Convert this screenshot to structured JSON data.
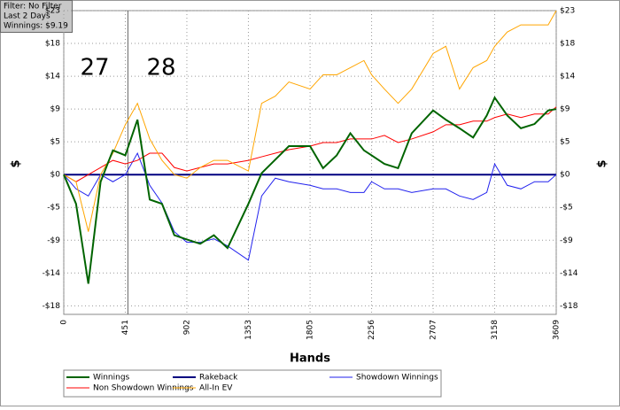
{
  "chart_data": {
    "type": "line",
    "info": [
      "Filter: No Filter",
      "Last  2 Days",
      "Winnings: $9.19"
    ],
    "xlabel": "Hands",
    "ylabel": "$",
    "annotations": [
      "27",
      "28"
    ],
    "divider": 470,
    "x": [
      0,
      90,
      180,
      270,
      360,
      451,
      540,
      630,
      720,
      810,
      902,
      1000,
      1100,
      1200,
      1353,
      1450,
      1550,
      1650,
      1805,
      1900,
      2000,
      2100,
      2200,
      2256,
      2350,
      2450,
      2550,
      2707,
      2800,
      2900,
      3000,
      3100,
      3158,
      3250,
      3350,
      3450,
      3550,
      3609
    ],
    "xlim": [
      0,
      3609
    ],
    "xticks": [
      0,
      451,
      902,
      1353,
      {
        "value": 1805,
        "label": "1805"
      },
      2256,
      2707,
      3158,
      3609
    ],
    "ylim": [
      -19.6,
      23
    ],
    "yticks": [
      {
        "value": -18.4,
        "label": "-$18"
      },
      {
        "value": -13.8,
        "label": "-$14"
      },
      {
        "value": -9.2,
        "label": "-$9"
      },
      {
        "value": -4.6,
        "label": "-$5"
      },
      {
        "value": 0,
        "label": "$0"
      },
      {
        "value": 4.6,
        "label": "$5"
      },
      {
        "value": 9.2,
        "label": "$9"
      },
      {
        "value": 13.8,
        "label": "$14"
      },
      {
        "value": 18.4,
        "label": "$18"
      },
      {
        "value": 23,
        "label": "$23"
      }
    ],
    "grid": true,
    "series": [
      {
        "name": "Winnings",
        "color": "#006400",
        "values": [
          0,
          -4.1,
          -15.3,
          -1,
          3.4,
          2.7,
          7.7,
          -3.5,
          -4.1,
          -8.5,
          -9.1,
          -9.7,
          -8.5,
          -10.3,
          -4.1,
          0.2,
          2.1,
          4,
          4,
          0.9,
          2.7,
          5.8,
          3.4,
          2.7,
          1.5,
          0.9,
          5.8,
          9,
          7.7,
          6.5,
          5.2,
          8.3,
          10.8,
          8.3,
          6.5,
          7.1,
          9,
          9.19
        ]
      },
      {
        "name": "Rakeback",
        "color": "#000080",
        "values": [
          0,
          0,
          0,
          0,
          0,
          0,
          0,
          0,
          0,
          0,
          0,
          0,
          0,
          0,
          0,
          0,
          0,
          0,
          0,
          0,
          0,
          0,
          0,
          0,
          0,
          0,
          0,
          0,
          0,
          0,
          0,
          0,
          0,
          0,
          0,
          0,
          0,
          0
        ]
      },
      {
        "name": "Showdown Winnings",
        "color": "#2222ee",
        "values": [
          0,
          -2,
          -3,
          0,
          -1,
          0,
          3,
          -1.5,
          -4,
          -8,
          -9.5,
          -9.5,
          -9,
          -10,
          -12,
          -3,
          -0.5,
          -1,
          -1.5,
          -2,
          -2,
          -2.5,
          -2.5,
          -1,
          -2,
          -2,
          -2.5,
          -2,
          -2,
          -3,
          -3.5,
          -2.5,
          1.5,
          -1.5,
          -2,
          -1,
          -1,
          0
        ]
      },
      {
        "name": "Non Showdown Winnings",
        "color": "#ff0000",
        "values": [
          0,
          -1,
          0,
          1,
          2,
          1.5,
          2,
          3,
          3,
          1,
          0.5,
          1,
          1.5,
          1.5,
          2,
          2.5,
          3,
          3.5,
          4,
          4.5,
          4.5,
          5,
          5,
          5,
          5.5,
          4.5,
          5,
          6,
          7,
          7,
          7.5,
          7.5,
          8,
          8.5,
          8,
          8.5,
          8.5,
          9.5
        ]
      },
      {
        "name": "All-In EV",
        "color": "#ffa500",
        "values": [
          0,
          -1,
          -8,
          0,
          3,
          7,
          10,
          5,
          2,
          0,
          -0.5,
          1,
          2,
          2,
          0.5,
          10,
          11,
          13,
          12,
          14,
          14,
          15,
          16,
          14,
          12,
          10,
          12,
          17,
          18,
          12,
          15,
          16,
          18,
          20,
          21,
          21,
          21,
          23
        ]
      }
    ]
  }
}
